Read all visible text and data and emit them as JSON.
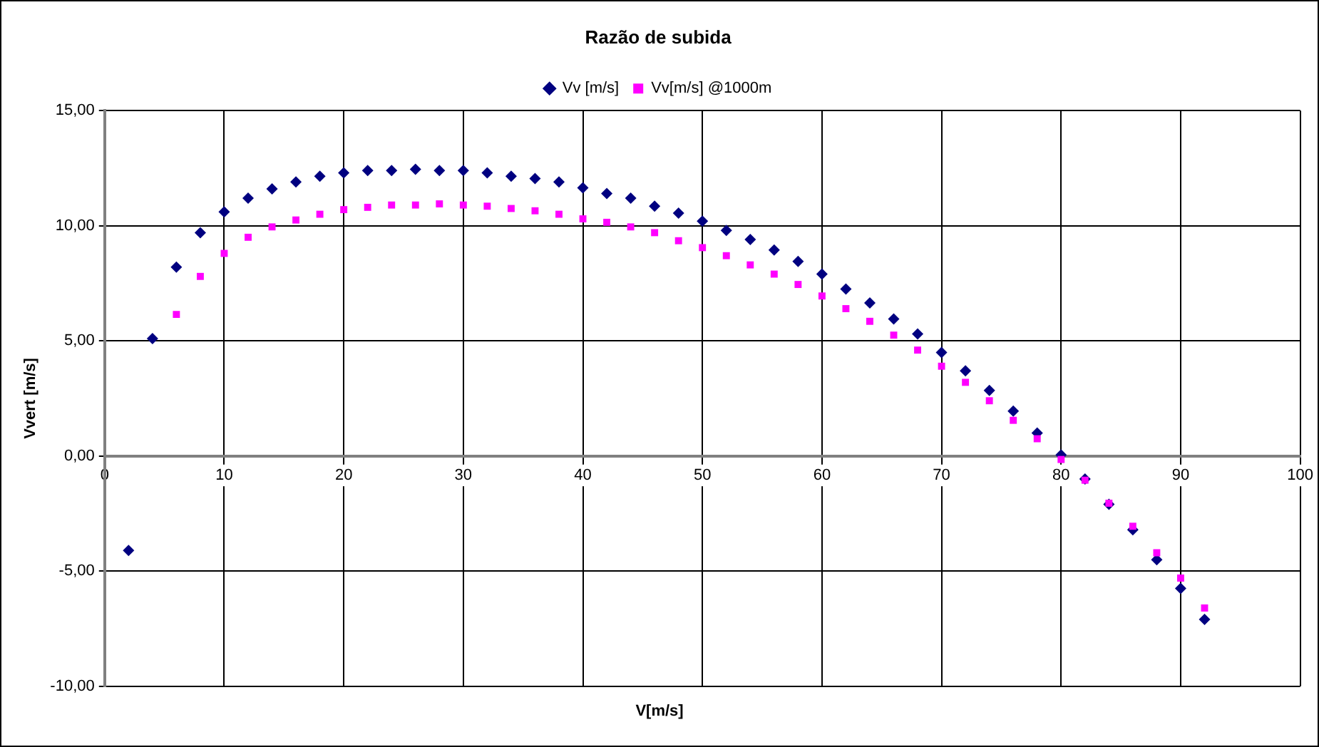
{
  "chart_data": {
    "type": "scatter",
    "title": "Razão de subida",
    "xlabel": "V[m/s]",
    "ylabel": "Vvert [m/s]",
    "x": [
      2,
      4,
      6,
      8,
      10,
      12,
      14,
      16,
      18,
      20,
      22,
      24,
      26,
      28,
      30,
      32,
      34,
      36,
      38,
      40,
      42,
      44,
      46,
      48,
      50,
      52,
      54,
      56,
      58,
      60,
      62,
      64,
      66,
      68,
      70,
      72,
      74,
      76,
      78,
      80,
      82,
      84,
      86,
      88,
      90,
      92
    ],
    "series": [
      {
        "name": "Vv [m/s]",
        "color": "#000080",
        "marker": "diamond",
        "values": [
          -4.1,
          5.1,
          8.2,
          9.7,
          10.6,
          11.2,
          11.6,
          11.9,
          12.15,
          12.3,
          12.4,
          12.4,
          12.45,
          12.4,
          12.4,
          12.3,
          12.15,
          12.05,
          11.9,
          11.65,
          11.4,
          11.2,
          10.85,
          10.55,
          10.2,
          9.8,
          9.4,
          8.95,
          8.45,
          7.9,
          7.25,
          6.65,
          5.95,
          5.3,
          4.5,
          3.7,
          2.85,
          1.95,
          1.0,
          0.05,
          -1.0,
          -2.1,
          -3.2,
          -4.5,
          -5.75,
          -7.1
        ]
      },
      {
        "name": "Vv[m/s] @1000m",
        "color": "#ff00ff",
        "marker": "square",
        "values": [
          null,
          null,
          6.15,
          7.8,
          8.8,
          9.5,
          9.95,
          10.25,
          10.5,
          10.7,
          10.8,
          10.9,
          10.9,
          10.95,
          10.9,
          10.85,
          10.75,
          10.65,
          10.5,
          10.3,
          10.15,
          9.95,
          9.7,
          9.35,
          9.05,
          8.7,
          8.3,
          7.9,
          7.45,
          6.95,
          6.4,
          5.85,
          5.25,
          4.6,
          3.9,
          3.2,
          2.4,
          1.55,
          0.75,
          -0.15,
          -1.05,
          -2.05,
          -3.05,
          -4.2,
          -5.3,
          -6.6
        ]
      }
    ],
    "xlim": [
      0,
      100
    ],
    "xticks": [
      0,
      10,
      20,
      30,
      40,
      50,
      60,
      70,
      80,
      90,
      100
    ],
    "ylim": [
      -10,
      15
    ],
    "yticks": [
      {
        "value": -10,
        "label": "-10,00"
      },
      {
        "value": -5,
        "label": "-5,00"
      },
      {
        "value": 0,
        "label": "0,00"
      },
      {
        "value": 5,
        "label": "5,00"
      },
      {
        "value": 10,
        "label": "10,00"
      },
      {
        "value": 15,
        "label": "15,00"
      }
    ],
    "grid": true,
    "legend": "top"
  }
}
